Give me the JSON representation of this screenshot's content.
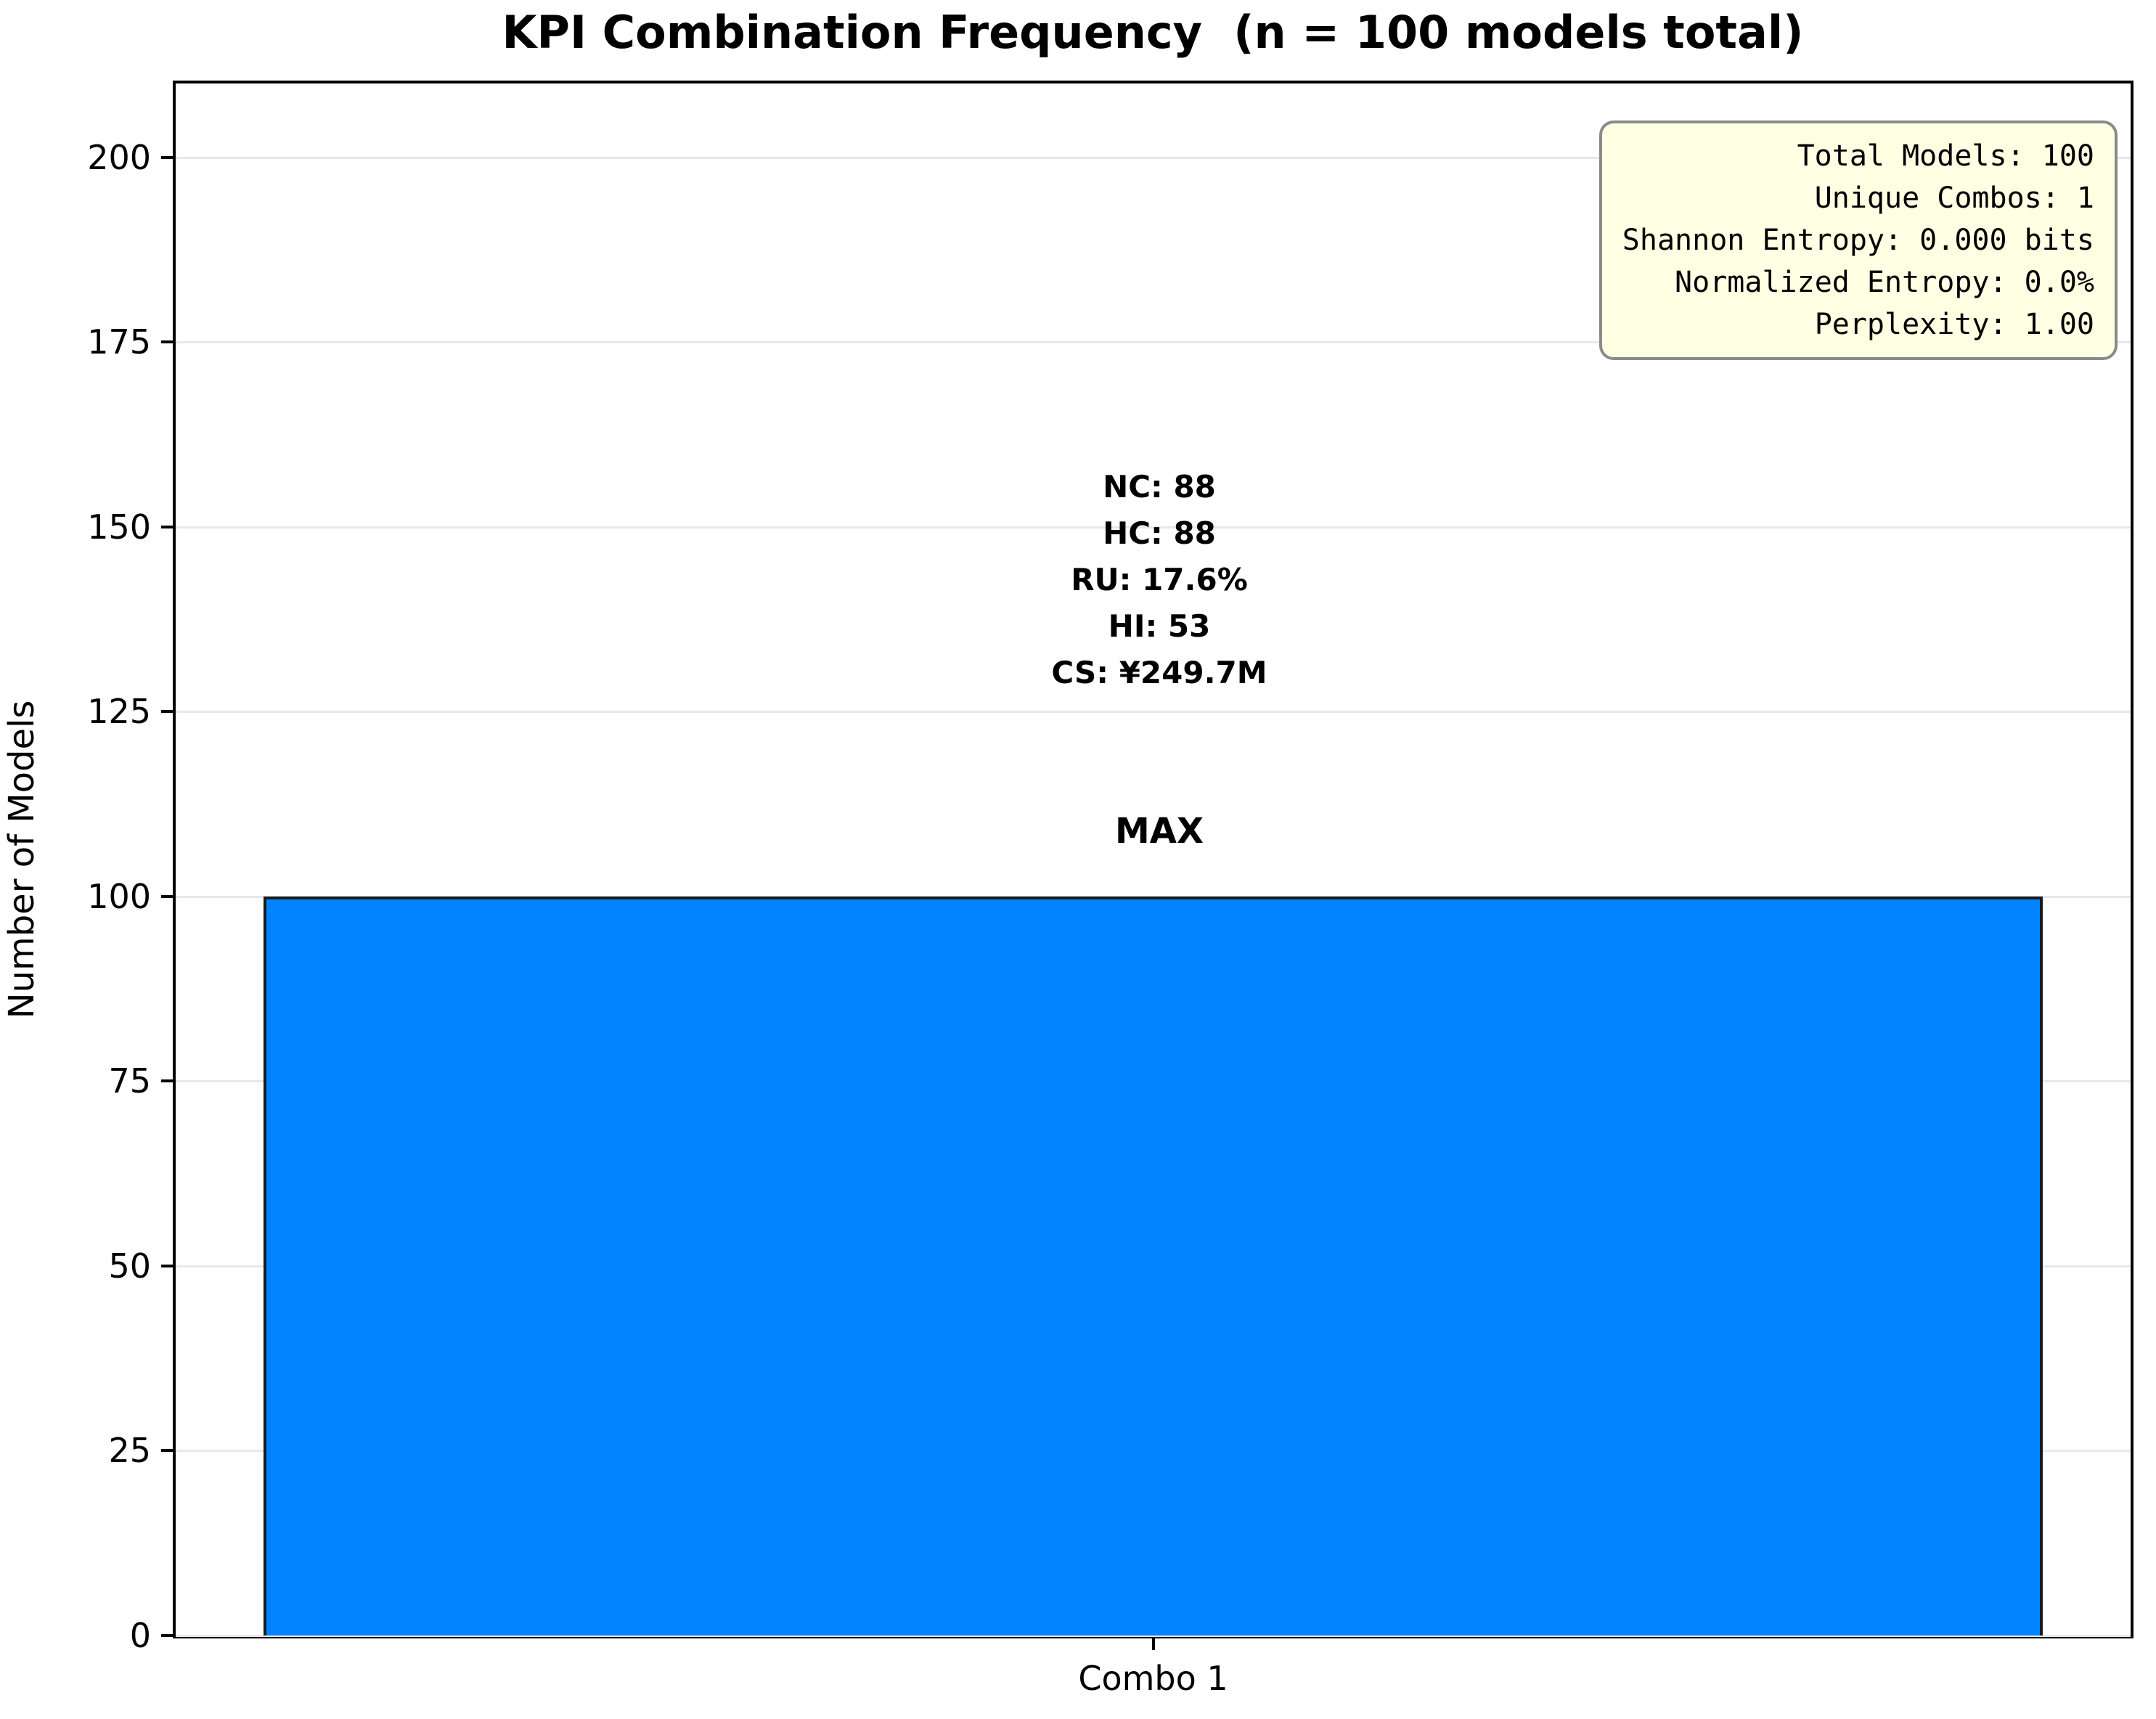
{
  "chart_data": {
    "type": "bar",
    "categories": [
      "Combo 1"
    ],
    "values": [
      100
    ],
    "title": "KPI Combination Frequency  (n = 100 models total)",
    "xlabel": "",
    "ylabel": "Number of Models",
    "ylim": [
      0,
      210
    ],
    "yticks": [
      0,
      25,
      50,
      75,
      100,
      125,
      150,
      175,
      200
    ],
    "grid": "horizontal",
    "legend": "none",
    "bar_color": "#0084FF",
    "bar_edge_color": "#1a1a1a",
    "annotations": {
      "bar_label_lines": [
        "NC: 88",
        "HC: 88",
        "RU: 17.6%",
        "HI: 53",
        "CS: ¥249.7M"
      ],
      "peak_label": "MAX",
      "stats_box_lines": [
        "Total Models: 100",
        "Unique Combos: 1",
        "Shannon Entropy: 0.000 bits",
        "Normalized Entropy: 0.0%",
        "Perplexity: 1.00"
      ]
    }
  },
  "colors": {
    "grid": "#e8e8e8",
    "stats_bg": "#FFFFE0",
    "stats_border": "#8a8a8a",
    "spine": "#000000"
  }
}
